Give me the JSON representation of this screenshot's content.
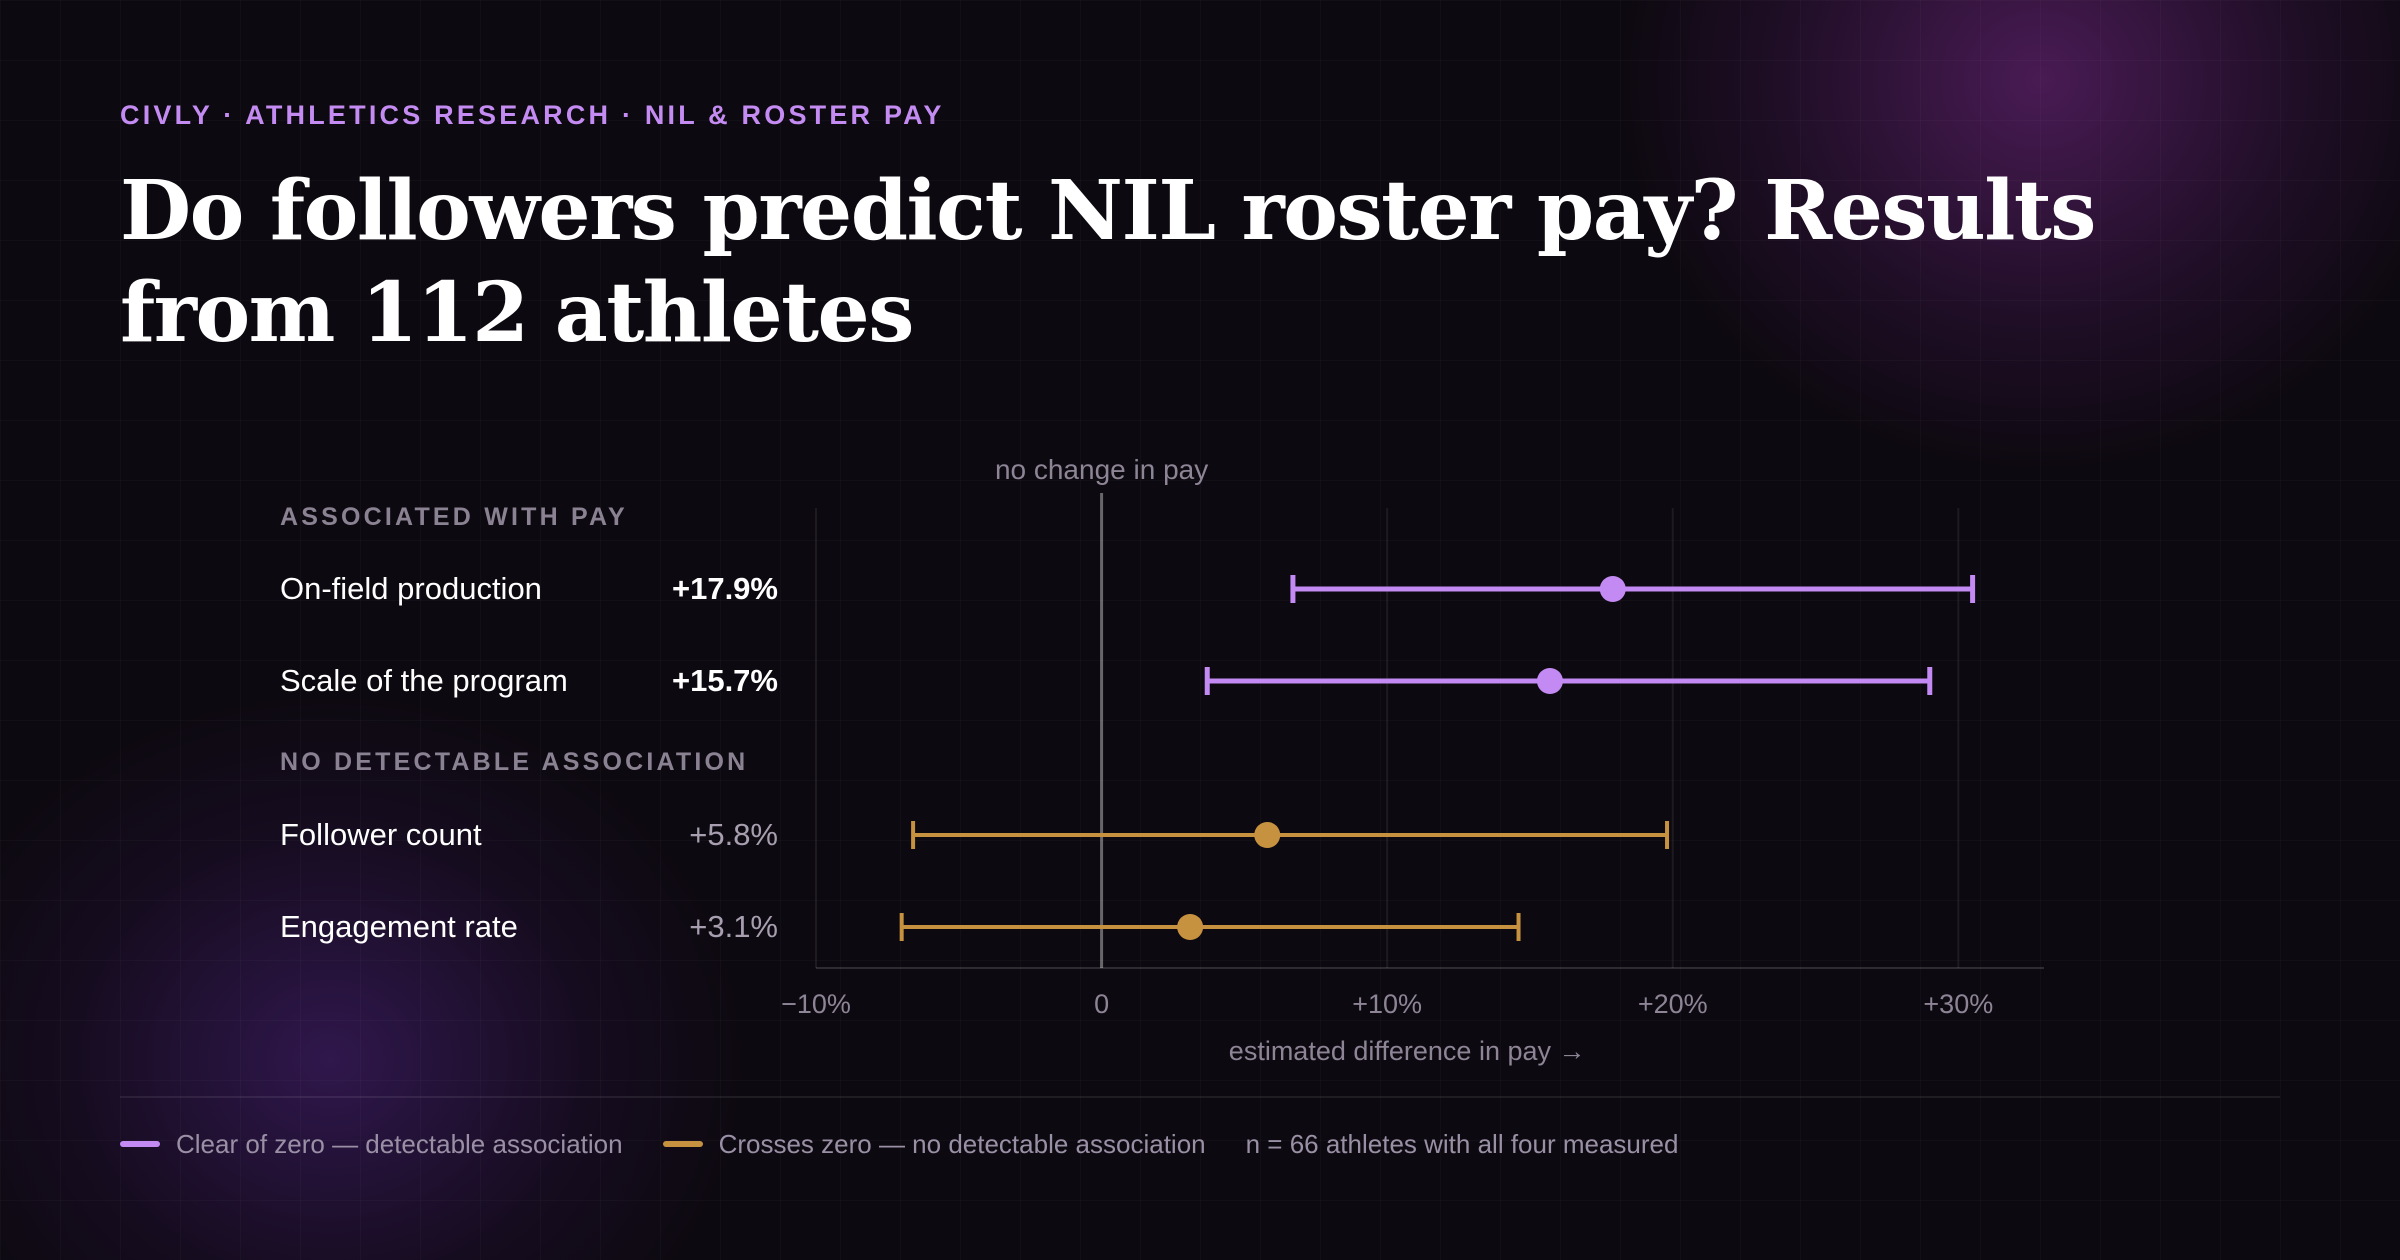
{
  "header": {
    "eyebrow": "CIVLY · ATHLETICS RESEARCH · NIL & ROSTER PAY",
    "title": "Do followers predict NIL roster pay? Results from 112 athletes"
  },
  "colors": {
    "background": "#0d0910",
    "associated": "#c38af3",
    "not_associated": "#c79240",
    "accent": "#c48cf2"
  },
  "chart_data": {
    "type": "forest",
    "xlabel": "estimated difference in pay →",
    "xlim": [
      -10,
      33
    ],
    "xticks": [
      -10,
      0,
      10,
      20,
      30
    ],
    "xtick_labels": [
      "−10%",
      "0",
      "+10%",
      "+20%",
      "+30%"
    ],
    "reference_line": {
      "x": 0,
      "label": "no change in pay"
    },
    "grid": true,
    "groups": [
      {
        "label": "ASSOCIATED WITH PAY",
        "status": "associated",
        "rows": [
          {
            "name": "On-field production",
            "estimate": 17.9,
            "low": 6.7,
            "high": 30.5,
            "value_label": "+17.9%"
          },
          {
            "name": "Scale of the program",
            "estimate": 15.7,
            "low": 3.7,
            "high": 29.0,
            "value_label": "+15.7%"
          }
        ]
      },
      {
        "label": "NO DETECTABLE ASSOCIATION",
        "status": "not_associated",
        "rows": [
          {
            "name": "Follower count",
            "estimate": 5.8,
            "low": -6.6,
            "high": 19.8,
            "value_label": "+5.8%"
          },
          {
            "name": "Engagement rate",
            "estimate": 3.1,
            "low": -7.0,
            "high": 14.6,
            "value_label": "+3.1%"
          }
        ]
      }
    ]
  },
  "legend": {
    "items": [
      {
        "label": "Clear of zero — detectable association",
        "color": "#c38af3"
      },
      {
        "label": "Crosses zero — no detectable association",
        "color": "#c79240"
      }
    ],
    "note": "n = 66 athletes with all four measured"
  }
}
